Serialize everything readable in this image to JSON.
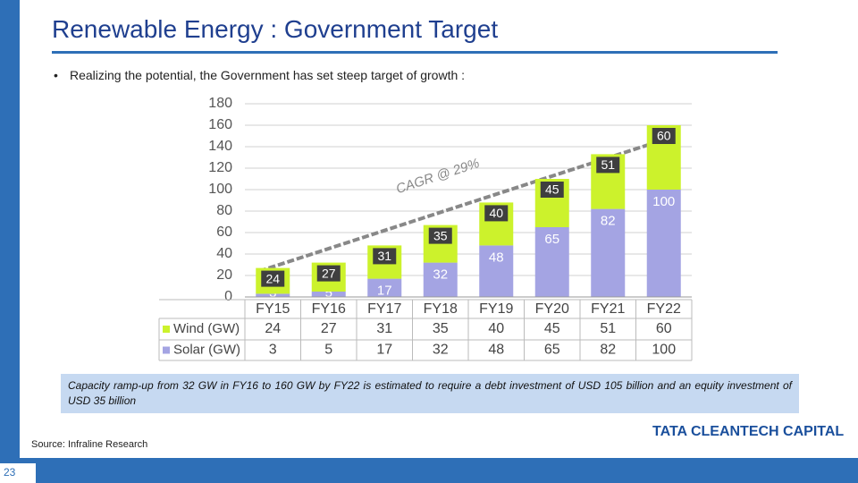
{
  "slide_title": "Renewable Energy : Government Target",
  "bullet": "Realizing the potential, the Government has set steep target of growth :",
  "chart_data": {
    "type": "bar",
    "stacked": true,
    "categories": [
      "FY15",
      "FY16",
      "FY17",
      "FY18",
      "FY19",
      "FY20",
      "FY21",
      "FY22"
    ],
    "series": [
      {
        "name": "Solar (GW)",
        "color": "#a4a4e3",
        "values": [
          3,
          5,
          17,
          32,
          48,
          65,
          82,
          100
        ]
      },
      {
        "name": "Wind (GW)",
        "color": "#ccf22c",
        "values": [
          24,
          27,
          31,
          35,
          40,
          45,
          51,
          60
        ]
      }
    ],
    "ylim": [
      0,
      180
    ],
    "yticks": [
      0,
      20,
      40,
      60,
      80,
      100,
      120,
      140,
      160,
      180
    ],
    "grid": true,
    "annotation": "CAGR @ 29%"
  },
  "note": "Capacity ramp-up from 32 GW in FY16 to 160 GW by FY22 is estimated to require a debt investment of USD 105 billion and an equity investment of USD 35 billion",
  "source": "Source: Infraline Research",
  "logo": "TATA CLEANTECH CAPITAL",
  "page_number": "23"
}
